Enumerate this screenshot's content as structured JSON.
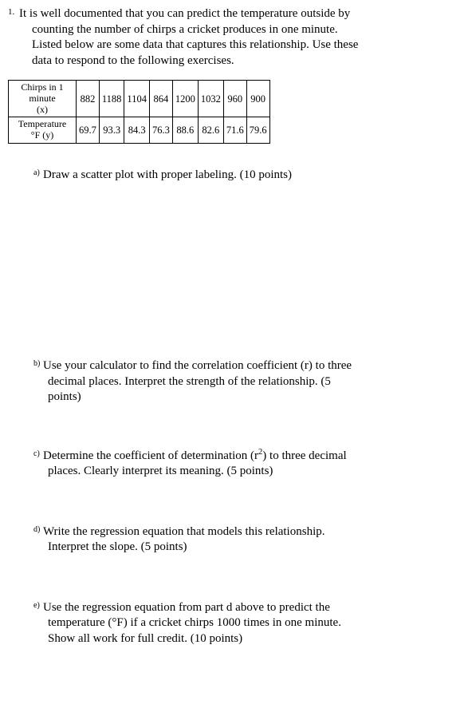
{
  "question_number": "1.",
  "intro_line1": "It is well documented that you can predict the temperature outside by",
  "intro_line2": "counting the number of chirps a cricket produces in one minute.",
  "intro_line3": " Listed below are some data that captures this relationship.  Use these",
  "intro_line4": "data to respond to the following exercises.",
  "table": {
    "row1_header_l1": "Chirps in 1",
    "row1_header_l2": "minute",
    "row1_header_l3": "(x)",
    "row2_header_l1": "Temperature",
    "row2_header_l2": "°F (y)",
    "x": [
      "882",
      "1188",
      "1104",
      "864",
      "1200",
      "1032",
      "960",
      "900"
    ],
    "y": [
      "69.7",
      "93.3",
      "84.3",
      "76.3",
      "88.6",
      "82.6",
      "71.6",
      "79.6"
    ]
  },
  "parts": {
    "a": {
      "label": "a)",
      "text": "Draw a scatter plot with proper labeling.  (10 points)"
    },
    "b": {
      "label": "b)",
      "l1": "Use your calculator to find the correlation coefficient (r) to three",
      "l2": "decimal places.  Interpret the strength of the relationship.  (5",
      "l3": "points)"
    },
    "c": {
      "label": "c)",
      "l1_pre": "Determine the coefficient of determination (r",
      "l1_sup": "2",
      "l1_post": ") to three decimal",
      "l2": "places.  Clearly interpret its meaning.  (5 points)"
    },
    "d": {
      "label": "d)",
      "l1": "Write the regression equation that models this relationship.",
      "l2": "Interpret the slope.  (5 points)"
    },
    "e": {
      "label": "e)",
      "l1": "Use the regression equation from part d above to predict the",
      "l2": "temperature (°F) if a cricket chirps 1000 times in one minute.",
      "l3": "Show all work for full credit.  (10 points)"
    }
  }
}
